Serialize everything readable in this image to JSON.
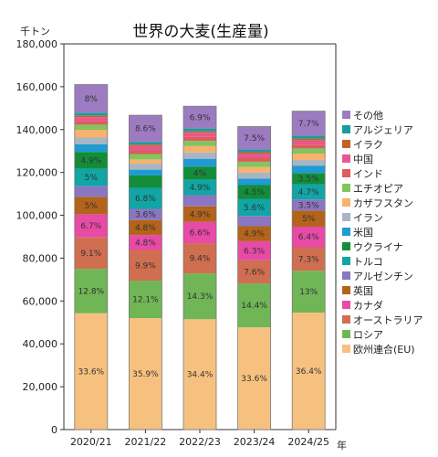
{
  "chart_data": {
    "type": "bar",
    "stacked": true,
    "title": "世界の大麦(生産量)",
    "ylabel": "千トン",
    "xlabel": "年",
    "ylim": [
      0,
      180000
    ],
    "yticks": [
      0,
      20000,
      40000,
      60000,
      80000,
      100000,
      120000,
      140000,
      160000,
      180000
    ],
    "ytick_labels": [
      "0",
      "20,000",
      "40,000",
      "60,000",
      "80,000",
      "100,000",
      "120,000",
      "140,000",
      "160,000",
      "180,000"
    ],
    "grid": false,
    "legend_position": "right",
    "categories": [
      "2020/21",
      "2021/22",
      "2022/23",
      "2023/24",
      "2024/25"
    ],
    "series": [
      {
        "name": "欧州連合(EU)",
        "color": "#f6c17f",
        "values": [
          54300,
          52000,
          51500,
          47700,
          54600
        ],
        "labels": [
          "33.6%",
          "35.9%",
          "34.4%",
          "33.6%",
          "36.4%"
        ]
      },
      {
        "name": "ロシア",
        "color": "#70b556",
        "values": [
          20700,
          17500,
          21400,
          20500,
          19500
        ],
        "labels": [
          "12.8%",
          "12.1%",
          "14.3%",
          "14.4%",
          "13%"
        ]
      },
      {
        "name": "オーストラリア",
        "color": "#cf6e50",
        "values": [
          14700,
          14300,
          14100,
          10800,
          11000
        ],
        "labels": [
          "9.1%",
          "9.9%",
          "9.4%",
          "7.6%",
          "7.3%"
        ]
      },
      {
        "name": "カナダ",
        "color": "#e84aa6",
        "values": [
          10800,
          7000,
          9900,
          8900,
          9600
        ],
        "labels": [
          "6.7%",
          "4.8%",
          "6.6%",
          "6.3%",
          "6.4%"
        ]
      },
      {
        "name": "英国",
        "color": "#b3641a",
        "values": [
          8100,
          7000,
          7300,
          7000,
          7500
        ],
        "labels": [
          "5%",
          "4.8%",
          "4.9%",
          "4.9%",
          "5%"
        ]
      },
      {
        "name": "アルゼンチン",
        "color": "#8b76c2",
        "values": [
          5000,
          5200,
          5200,
          4800,
          5200
        ],
        "labels": [
          "",
          "3.6%",
          "",
          "",
          "3.5%"
        ]
      },
      {
        "name": "トルコ",
        "color": "#12a5a5",
        "values": [
          8100,
          9800,
          7300,
          8000,
          7100
        ],
        "labels": [
          "5%",
          "6.8%",
          "4.9%",
          "5.6%",
          "4.7%"
        ]
      },
      {
        "name": "ウクライナ",
        "color": "#138d3a",
        "values": [
          7900,
          5800,
          6000,
          6400,
          5200
        ],
        "labels": [
          "4.9%",
          "",
          "4%",
          "4.5%",
          "3.5%"
        ]
      },
      {
        "name": "米国",
        "color": "#1f9bd1",
        "values": [
          3600,
          2700,
          3700,
          3000,
          3500
        ],
        "labels": [
          "",
          "",
          "",
          "",
          ""
        ]
      },
      {
        "name": "イラン",
        "color": "#a9b4c4",
        "values": [
          3100,
          2800,
          2900,
          2800,
          2600
        ],
        "labels": [
          "",
          "",
          "",
          "",
          ""
        ]
      },
      {
        "name": "カザフスタン",
        "color": "#f7b26d",
        "values": [
          3600,
          2000,
          3000,
          2600,
          3000
        ],
        "labels": [
          "",
          "",
          "",
          "",
          ""
        ]
      },
      {
        "name": "エチオピア",
        "color": "#82c45e",
        "values": [
          2400,
          2500,
          2400,
          2500,
          2400
        ],
        "labels": [
          "",
          "",
          "",
          "",
          ""
        ]
      },
      {
        "name": "インド",
        "color": "#dd5d5d",
        "values": [
          1700,
          1700,
          1900,
          1900,
          1800
        ],
        "labels": [
          "",
          "",
          "",
          "",
          ""
        ]
      },
      {
        "name": "中国",
        "color": "#e8578f",
        "values": [
          1800,
          2000,
          1900,
          1900,
          1900
        ],
        "labels": [
          "",
          "",
          "",
          "",
          ""
        ]
      },
      {
        "name": "イラク",
        "color": "#c46224",
        "values": [
          800,
          700,
          700,
          700,
          900
        ],
        "labels": [
          "",
          "",
          "",
          "",
          ""
        ]
      },
      {
        "name": "アルジェリア",
        "color": "#169ea0",
        "values": [
          1300,
          1200,
          1300,
          1200,
          1300
        ],
        "labels": [
          "",
          "",
          "",
          "",
          ""
        ]
      },
      {
        "name": "その他",
        "color": "#9d7bc1",
        "values": [
          13100,
          12500,
          10400,
          10700,
          11500
        ],
        "labels": [
          "8%",
          "8.6%",
          "6.9%",
          "7.5%",
          "7.7%"
        ]
      }
    ]
  }
}
